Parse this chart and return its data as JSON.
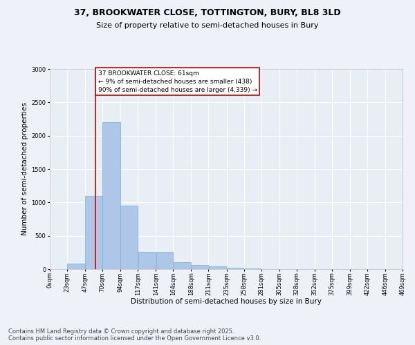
{
  "title_line1": "37, BROOKWATER CLOSE, TOTTINGTON, BURY, BL8 3LD",
  "title_line2": "Size of property relative to semi-detached houses in Bury",
  "xlabel": "Distribution of semi-detached houses by size in Bury",
  "ylabel": "Number of semi-detached properties",
  "bar_color": "#aec6e8",
  "bar_edge_color": "#7aadd4",
  "vline_color": "#cc0000",
  "vline_x": 61,
  "annotation_text": "37 BROOKWATER CLOSE: 61sqm\n← 9% of semi-detached houses are smaller (438)\n90% of semi-detached houses are larger (4,339) →",
  "annotation_box_color": "#ffffff",
  "annotation_box_edge": "#cc0000",
  "bin_edges": [
    0,
    23,
    47,
    70,
    94,
    117,
    141,
    164,
    188,
    211,
    235,
    258,
    281,
    305,
    328,
    352,
    375,
    399,
    422,
    446,
    469
  ],
  "bar_heights": [
    0,
    80,
    1100,
    2200,
    950,
    260,
    260,
    100,
    60,
    40,
    20,
    10,
    5,
    3,
    1,
    0,
    0,
    0,
    0,
    0
  ],
  "ylim": [
    0,
    3000
  ],
  "yticks": [
    0,
    500,
    1000,
    1500,
    2000,
    2500,
    3000
  ],
  "background_color": "#eef2f8",
  "plot_bg_color": "#e8eef6",
  "grid_color": "#ffffff",
  "footer_text": "Contains HM Land Registry data © Crown copyright and database right 2025.\nContains public sector information licensed under the Open Government Licence v3.0.",
  "title_fontsize": 9,
  "subtitle_fontsize": 8,
  "tick_fontsize": 6,
  "label_fontsize": 7.5,
  "footer_fontsize": 6,
  "annot_fontsize": 6.5
}
